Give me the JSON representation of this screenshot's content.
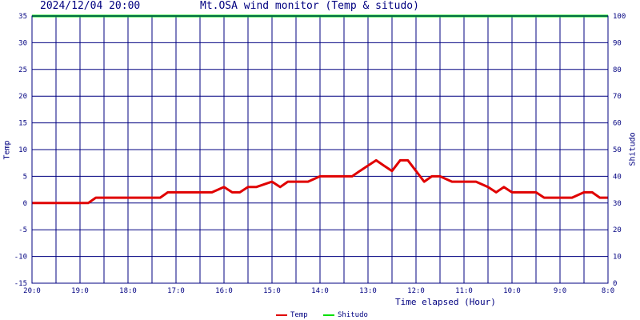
{
  "header": {
    "timestamp": "2024/12/04 20:00",
    "title": "Mt.OSA wind monitor (Temp & situdo)"
  },
  "chart_data": {
    "type": "line",
    "title": "Mt.OSA wind monitor (Temp & situdo)",
    "xlabel": "Time elapsed (Hour)",
    "ylabel_left": "Temp",
    "ylabel_right": "Shitudo",
    "x_tick_labels": [
      "20:0",
      "19:0",
      "18:0",
      "17:0",
      "16:0",
      "15:0",
      "14:0",
      "13:0",
      "12:0",
      "11:0",
      "10:0",
      "9:0",
      "8:0"
    ],
    "x_tick_values": [
      0,
      1,
      2,
      3,
      4,
      5,
      6,
      7,
      8,
      9,
      10,
      11,
      12
    ],
    "xlim": [
      0,
      12
    ],
    "x_grid_step": 0.5,
    "ylim_left": [
      -15,
      35
    ],
    "y_tick_labels_left": [
      "-15",
      "-10",
      "-5",
      "0",
      "5",
      "10",
      "15",
      "20",
      "25",
      "30",
      "35"
    ],
    "ylim_right": [
      0,
      100
    ],
    "y_tick_labels_right": [
      "0",
      "10",
      "20",
      "30",
      "40",
      "50",
      "60",
      "70",
      "80",
      "90",
      "100"
    ],
    "grid": true,
    "legend_position": "bottom",
    "colors": {
      "temp": "#e00000",
      "shitudo": "#00e000",
      "grid": "#000080",
      "text": "#000080"
    },
    "series": [
      {
        "name": "Temp",
        "axis": "left",
        "x": [
          0,
          0.25,
          0.5,
          0.75,
          1,
          1.17,
          1.33,
          1.5,
          1.75,
          2,
          2.25,
          2.5,
          2.67,
          2.83,
          3,
          3.25,
          3.5,
          3.75,
          4,
          4.17,
          4.33,
          4.5,
          4.67,
          5,
          5.17,
          5.33,
          5.5,
          5.75,
          6,
          6.25,
          6.5,
          6.67,
          6.83,
          7,
          7.17,
          7.33,
          7.5,
          7.67,
          7.83,
          8,
          8.17,
          8.33,
          8.5,
          8.75,
          9,
          9.25,
          9.5,
          9.67,
          9.83,
          10,
          10.25,
          10.5,
          10.67,
          10.83,
          11,
          11.25,
          11.5,
          11.67,
          11.83,
          12
        ],
        "y": [
          0,
          0,
          0,
          0,
          0,
          0,
          1,
          1,
          1,
          1,
          1,
          1,
          1,
          2,
          2,
          2,
          2,
          2,
          3,
          2,
          2,
          3,
          3,
          4,
          3,
          4,
          4,
          4,
          5,
          5,
          5,
          5,
          6,
          7,
          8,
          7,
          6,
          8,
          8,
          6,
          4,
          5,
          5,
          4,
          4,
          4,
          3,
          2,
          3,
          2,
          2,
          2,
          1,
          1,
          1,
          1,
          2,
          2,
          1,
          1
        ]
      },
      {
        "name": "Shitudo",
        "axis": "right",
        "x": [
          0,
          12
        ],
        "y": [
          100,
          100
        ]
      }
    ]
  },
  "legend": [
    {
      "label": "Temp",
      "color": "#e00000"
    },
    {
      "label": "Shitudo",
      "color": "#00e000"
    }
  ]
}
